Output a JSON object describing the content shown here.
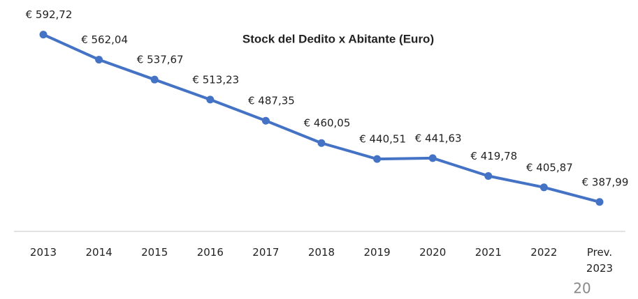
{
  "chart_data": {
    "type": "line",
    "title": "Stock del Dedito x Abitante (Euro)",
    "categories": [
      "2013",
      "2014",
      "2015",
      "2016",
      "2017",
      "2018",
      "2019",
      "2020",
      "2021",
      "2022",
      "Prev. 2023"
    ],
    "series": [
      {
        "name": "Stock del Dedito x Abitante",
        "color": "#4472c4",
        "values": [
          592.72,
          562.04,
          537.67,
          513.23,
          487.35,
          460.05,
          440.51,
          441.63,
          419.78,
          405.87,
          387.99
        ],
        "value_labels": [
          "€ 592,72",
          "€ 562,04",
          "€ 537,67",
          "€ 513,23",
          "€ 487,35",
          "€ 460,05",
          "€ 440,51",
          "€ 441,63",
          "€ 419,78",
          "€ 405,87",
          "€ 387,99"
        ]
      }
    ],
    "ylim": [
      352,
      635
    ]
  },
  "page_number": "20"
}
